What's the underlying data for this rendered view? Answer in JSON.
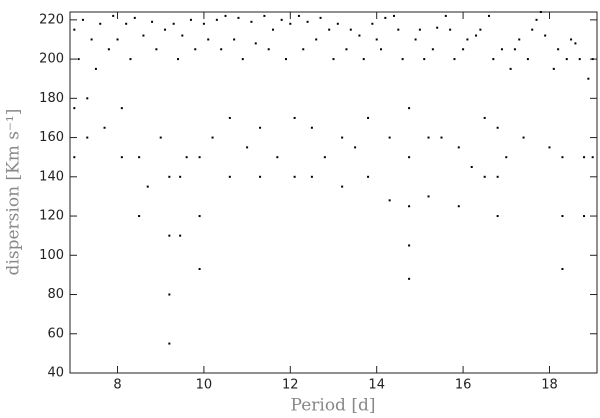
{
  "chart_data": {
    "type": "scatter",
    "xlabel": "Period [d]",
    "ylabel": "dispersion [Km s⁻¹]",
    "xlim": [
      6.9,
      19.1
    ],
    "xticks": [
      8,
      10,
      12,
      14,
      16,
      18
    ],
    "ylim": [
      40,
      224
    ],
    "yticks": [
      40,
      60,
      80,
      100,
      120,
      140,
      160,
      180,
      200,
      220
    ],
    "color": "#000000",
    "x": [
      7.0,
      7.1,
      7.2,
      7.4,
      7.5,
      7.6,
      7.8,
      7.9,
      8.0,
      8.2,
      8.3,
      8.4,
      8.6,
      8.8,
      8.9,
      9.1,
      9.3,
      9.4,
      9.5,
      9.7,
      9.8,
      10.0,
      10.1,
      10.3,
      10.4,
      10.5,
      10.7,
      10.8,
      10.9,
      11.1,
      11.2,
      11.4,
      11.5,
      11.6,
      11.8,
      11.9,
      12.0,
      12.2,
      12.3,
      12.4,
      12.6,
      12.7,
      12.9,
      13.0,
      13.1,
      13.3,
      13.4,
      13.6,
      13.7,
      13.9,
      14.0,
      14.1,
      14.2,
      14.4,
      14.5,
      14.6,
      14.9,
      15.0,
      15.1,
      15.3,
      15.4,
      15.6,
      15.7,
      15.8,
      16.0,
      16.1,
      16.3,
      16.4,
      16.6,
      16.7,
      16.9,
      17.1,
      17.2,
      17.3,
      17.5,
      17.6,
      17.7,
      17.8,
      17.9,
      18.1,
      18.2,
      18.4,
      18.5,
      18.6,
      18.7,
      18.9,
      19.0,
      7.0,
      7.0,
      7.3,
      7.3,
      7.7,
      8.1,
      8.1,
      8.5,
      8.5,
      8.7,
      9.0,
      9.2,
      9.2,
      9.2,
      9.2,
      9.45,
      9.45,
      9.6,
      9.9,
      9.9,
      9.9,
      10.2,
      10.6,
      10.6,
      11.0,
      11.3,
      11.3,
      11.7,
      12.1,
      12.1,
      12.5,
      12.5,
      12.8,
      13.2,
      13.2,
      13.5,
      13.8,
      13.8,
      14.3,
      14.3,
      14.75,
      14.75,
      14.75,
      14.75,
      14.75,
      15.2,
      15.2,
      15.5,
      15.9,
      15.9,
      16.2,
      16.5,
      16.5,
      16.8,
      16.8,
      16.8,
      17.0,
      17.4,
      18.0,
      18.3,
      18.3,
      18.3,
      18.8,
      18.8,
      19.0
    ],
    "y": [
      215,
      200,
      220,
      210,
      195,
      218,
      205,
      222,
      210,
      218,
      200,
      221,
      212,
      219,
      205,
      215,
      218,
      200,
      212,
      220,
      205,
      218,
      210,
      220,
      205,
      222,
      210,
      221,
      200,
      219,
      208,
      222,
      205,
      215,
      220,
      200,
      218,
      222,
      205,
      219,
      210,
      221,
      215,
      200,
      218,
      205,
      215,
      212,
      200,
      218,
      210,
      205,
      221,
      222,
      215,
      200,
      210,
      215,
      200,
      205,
      216,
      222,
      215,
      200,
      205,
      210,
      212,
      215,
      222,
      200,
      205,
      195,
      205,
      210,
      200,
      215,
      220,
      224,
      212,
      195,
      205,
      200,
      210,
      208,
      200,
      190,
      200,
      150,
      175,
      160,
      180,
      165,
      150,
      175,
      120,
      150,
      135,
      160,
      55,
      80,
      110,
      140,
      110,
      140,
      150,
      93,
      120,
      150,
      160,
      140,
      170,
      155,
      140,
      165,
      150,
      140,
      170,
      140,
      165,
      150,
      135,
      160,
      155,
      140,
      170,
      128,
      160,
      88,
      105,
      125,
      150,
      175,
      130,
      160,
      160,
      125,
      155,
      145,
      140,
      170,
      120,
      140,
      165,
      150,
      160,
      155,
      93,
      120,
      150,
      120,
      150,
      150
    ]
  }
}
